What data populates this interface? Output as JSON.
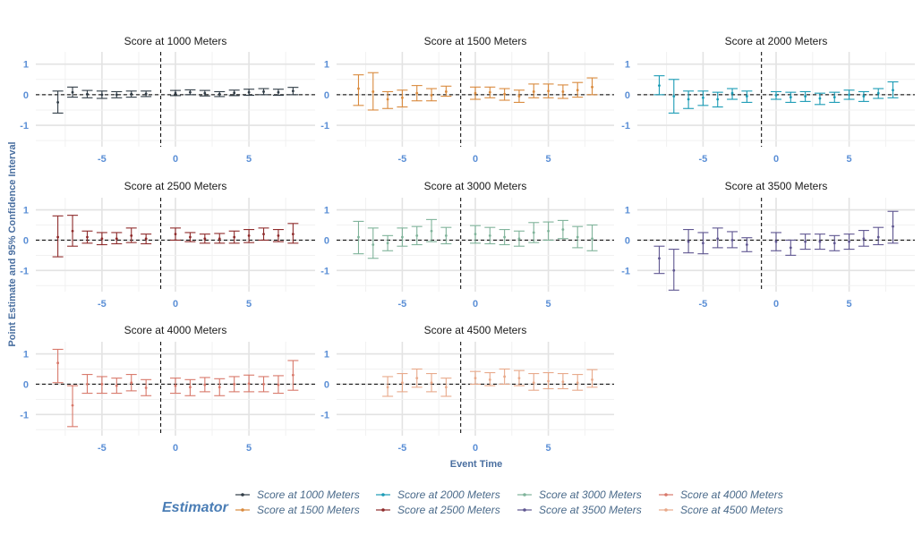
{
  "chart_data": {
    "type": "scatter",
    "subtype": "event-study point estimates with 95% confidence intervals, faceted",
    "xlabel": "Event Time",
    "ylabel": "Point Estimate and 95% Confidence Interval",
    "x_ticks": [
      -5,
      0,
      5
    ],
    "y_ticks": [
      -1,
      0,
      1
    ],
    "xlim": [
      -9.5,
      9.5
    ],
    "ylim": [
      -1.7,
      1.4
    ],
    "reference_lines": {
      "horizontal_y": 0,
      "vertical_x": -1,
      "style": "dashed"
    },
    "grid": true,
    "legend": {
      "title": "Estimator",
      "position": "bottom",
      "entries": [
        "Score at 1000 Meters",
        "Score at 1500 Meters",
        "Score at 2000 Meters",
        "Score at 2500 Meters",
        "Score at 3000 Meters",
        "Score at 3500 Meters",
        "Score at 4000 Meters",
        "Score at 4500 Meters"
      ]
    },
    "panels": [
      {
        "title": "Score at 1000 Meters",
        "color": "#2f3b45",
        "points": [
          {
            "x": -8,
            "y": -0.25,
            "lo": -0.6,
            "hi": 0.12
          },
          {
            "x": -7,
            "y": 0.08,
            "lo": -0.08,
            "hi": 0.25
          },
          {
            "x": -6,
            "y": 0.02,
            "lo": -0.1,
            "hi": 0.14
          },
          {
            "x": -5,
            "y": 0.0,
            "lo": -0.12,
            "hi": 0.12
          },
          {
            "x": -4,
            "y": 0.0,
            "lo": -0.1,
            "hi": 0.1
          },
          {
            "x": -3,
            "y": 0.02,
            "lo": -0.08,
            "hi": 0.12
          },
          {
            "x": -2,
            "y": 0.03,
            "lo": -0.06,
            "hi": 0.12
          },
          {
            "x": 0,
            "y": 0.05,
            "lo": -0.03,
            "hi": 0.14
          },
          {
            "x": 1,
            "y": 0.08,
            "lo": 0.0,
            "hi": 0.16
          },
          {
            "x": 2,
            "y": 0.05,
            "lo": -0.04,
            "hi": 0.14
          },
          {
            "x": 3,
            "y": 0.02,
            "lo": -0.06,
            "hi": 0.1
          },
          {
            "x": 4,
            "y": 0.06,
            "lo": -0.03,
            "hi": 0.15
          },
          {
            "x": 5,
            "y": 0.08,
            "lo": -0.02,
            "hi": 0.18
          },
          {
            "x": 6,
            "y": 0.1,
            "lo": 0.0,
            "hi": 0.2
          },
          {
            "x": 7,
            "y": 0.08,
            "lo": -0.02,
            "hi": 0.18
          },
          {
            "x": 8,
            "y": 0.12,
            "lo": 0.0,
            "hi": 0.24
          }
        ]
      },
      {
        "title": "Score at 1500 Meters",
        "color": "#d98a3d",
        "points": [
          {
            "x": -8,
            "y": 0.2,
            "lo": -0.35,
            "hi": 0.65
          },
          {
            "x": -7,
            "y": 0.1,
            "lo": -0.5,
            "hi": 0.72
          },
          {
            "x": -6,
            "y": -0.15,
            "lo": -0.45,
            "hi": 0.1
          },
          {
            "x": -5,
            "y": -0.1,
            "lo": -0.4,
            "hi": 0.15
          },
          {
            "x": -4,
            "y": 0.05,
            "lo": -0.2,
            "hi": 0.3
          },
          {
            "x": -3,
            "y": -0.02,
            "lo": -0.2,
            "hi": 0.2
          },
          {
            "x": -2,
            "y": 0.1,
            "lo": -0.05,
            "hi": 0.28
          },
          {
            "x": 0,
            "y": 0.05,
            "lo": -0.15,
            "hi": 0.25
          },
          {
            "x": 1,
            "y": 0.08,
            "lo": -0.1,
            "hi": 0.25
          },
          {
            "x": 2,
            "y": 0.02,
            "lo": -0.18,
            "hi": 0.2
          },
          {
            "x": 3,
            "y": -0.05,
            "lo": -0.25,
            "hi": 0.15
          },
          {
            "x": 4,
            "y": 0.1,
            "lo": -0.1,
            "hi": 0.35
          },
          {
            "x": 5,
            "y": 0.12,
            "lo": -0.1,
            "hi": 0.35
          },
          {
            "x": 6,
            "y": 0.1,
            "lo": -0.12,
            "hi": 0.32
          },
          {
            "x": 7,
            "y": 0.15,
            "lo": -0.08,
            "hi": 0.4
          },
          {
            "x": 8,
            "y": 0.25,
            "lo": 0.0,
            "hi": 0.55
          }
        ]
      },
      {
        "title": "Score at 2000 Meters",
        "color": "#1a9bb5",
        "points": [
          {
            "x": -8,
            "y": 0.3,
            "lo": 0.0,
            "hi": 0.62
          },
          {
            "x": -7,
            "y": -0.05,
            "lo": -0.6,
            "hi": 0.5
          },
          {
            "x": -6,
            "y": -0.15,
            "lo": -0.45,
            "hi": 0.12
          },
          {
            "x": -5,
            "y": -0.1,
            "lo": -0.35,
            "hi": 0.12
          },
          {
            "x": -4,
            "y": -0.15,
            "lo": -0.4,
            "hi": 0.08
          },
          {
            "x": -3,
            "y": 0.05,
            "lo": -0.15,
            "hi": 0.2
          },
          {
            "x": -2,
            "y": -0.05,
            "lo": -0.25,
            "hi": 0.12
          },
          {
            "x": 0,
            "y": -0.02,
            "lo": -0.15,
            "hi": 0.1
          },
          {
            "x": 1,
            "y": -0.08,
            "lo": -0.25,
            "hi": 0.08
          },
          {
            "x": 2,
            "y": -0.05,
            "lo": -0.22,
            "hi": 0.1
          },
          {
            "x": 3,
            "y": -0.12,
            "lo": -0.32,
            "hi": 0.05
          },
          {
            "x": 4,
            "y": -0.08,
            "lo": -0.25,
            "hi": 0.08
          },
          {
            "x": 5,
            "y": 0.0,
            "lo": -0.15,
            "hi": 0.15
          },
          {
            "x": 6,
            "y": -0.05,
            "lo": -0.22,
            "hi": 0.1
          },
          {
            "x": 7,
            "y": 0.05,
            "lo": -0.12,
            "hi": 0.2
          },
          {
            "x": 8,
            "y": 0.15,
            "lo": -0.1,
            "hi": 0.42
          }
        ]
      },
      {
        "title": "Score at 2500 Meters",
        "color": "#8e2a2a",
        "points": [
          {
            "x": -8,
            "y": 0.1,
            "lo": -0.55,
            "hi": 0.8
          },
          {
            "x": -7,
            "y": 0.3,
            "lo": -0.2,
            "hi": 0.82
          },
          {
            "x": -6,
            "y": 0.1,
            "lo": -0.1,
            "hi": 0.3
          },
          {
            "x": -5,
            "y": 0.05,
            "lo": -0.15,
            "hi": 0.25
          },
          {
            "x": -4,
            "y": 0.05,
            "lo": -0.12,
            "hi": 0.25
          },
          {
            "x": -3,
            "y": 0.15,
            "lo": -0.08,
            "hi": 0.4
          },
          {
            "x": -2,
            "y": 0.05,
            "lo": -0.12,
            "hi": 0.2
          },
          {
            "x": 0,
            "y": 0.2,
            "lo": 0.0,
            "hi": 0.4
          },
          {
            "x": 1,
            "y": 0.1,
            "lo": -0.05,
            "hi": 0.25
          },
          {
            "x": 2,
            "y": 0.05,
            "lo": -0.1,
            "hi": 0.2
          },
          {
            "x": 3,
            "y": 0.05,
            "lo": -0.1,
            "hi": 0.22
          },
          {
            "x": 4,
            "y": 0.1,
            "lo": -0.1,
            "hi": 0.3
          },
          {
            "x": 5,
            "y": 0.15,
            "lo": -0.08,
            "hi": 0.35
          },
          {
            "x": 6,
            "y": 0.2,
            "lo": 0.0,
            "hi": 0.4
          },
          {
            "x": 7,
            "y": 0.15,
            "lo": -0.05,
            "hi": 0.35
          },
          {
            "x": 8,
            "y": 0.2,
            "lo": -0.1,
            "hi": 0.55
          }
        ]
      },
      {
        "title": "Score at 3000 Meters",
        "color": "#7fb39a",
        "points": [
          {
            "x": -8,
            "y": 0.1,
            "lo": -0.45,
            "hi": 0.62
          },
          {
            "x": -7,
            "y": -0.15,
            "lo": -0.6,
            "hi": 0.4
          },
          {
            "x": -6,
            "y": -0.1,
            "lo": -0.35,
            "hi": 0.15
          },
          {
            "x": -5,
            "y": 0.1,
            "lo": -0.2,
            "hi": 0.4
          },
          {
            "x": -4,
            "y": 0.15,
            "lo": -0.15,
            "hi": 0.45
          },
          {
            "x": -3,
            "y": 0.3,
            "lo": -0.05,
            "hi": 0.68
          },
          {
            "x": -2,
            "y": 0.15,
            "lo": -0.12,
            "hi": 0.42
          },
          {
            "x": 0,
            "y": 0.2,
            "lo": -0.1,
            "hi": 0.48
          },
          {
            "x": 1,
            "y": 0.15,
            "lo": -0.12,
            "hi": 0.42
          },
          {
            "x": 2,
            "y": 0.1,
            "lo": -0.15,
            "hi": 0.35
          },
          {
            "x": 3,
            "y": 0.05,
            "lo": -0.2,
            "hi": 0.3
          },
          {
            "x": 4,
            "y": 0.25,
            "lo": -0.08,
            "hi": 0.58
          },
          {
            "x": 5,
            "y": 0.3,
            "lo": 0.0,
            "hi": 0.6
          },
          {
            "x": 6,
            "y": 0.35,
            "lo": 0.05,
            "hi": 0.65
          },
          {
            "x": 7,
            "y": 0.1,
            "lo": -0.25,
            "hi": 0.45
          },
          {
            "x": 8,
            "y": 0.05,
            "lo": -0.35,
            "hi": 0.5
          }
        ]
      },
      {
        "title": "Score at 3500 Meters",
        "color": "#5e5590",
        "points": [
          {
            "x": -8,
            "y": -0.6,
            "lo": -1.1,
            "hi": -0.2
          },
          {
            "x": -7,
            "y": -1.0,
            "lo": -1.65,
            "hi": -0.3
          },
          {
            "x": -6,
            "y": -0.05,
            "lo": -0.42,
            "hi": 0.35
          },
          {
            "x": -5,
            "y": -0.1,
            "lo": -0.45,
            "hi": 0.25
          },
          {
            "x": -4,
            "y": 0.05,
            "lo": -0.25,
            "hi": 0.4
          },
          {
            "x": -3,
            "y": 0.0,
            "lo": -0.25,
            "hi": 0.28
          },
          {
            "x": -2,
            "y": -0.15,
            "lo": -0.38,
            "hi": 0.08
          },
          {
            "x": 0,
            "y": -0.05,
            "lo": -0.35,
            "hi": 0.25
          },
          {
            "x": 1,
            "y": -0.25,
            "lo": -0.5,
            "hi": 0.0
          },
          {
            "x": 2,
            "y": -0.05,
            "lo": -0.3,
            "hi": 0.2
          },
          {
            "x": 3,
            "y": -0.05,
            "lo": -0.3,
            "hi": 0.2
          },
          {
            "x": 4,
            "y": -0.1,
            "lo": -0.35,
            "hi": 0.15
          },
          {
            "x": 5,
            "y": -0.05,
            "lo": -0.3,
            "hi": 0.2
          },
          {
            "x": 6,
            "y": 0.05,
            "lo": -0.2,
            "hi": 0.32
          },
          {
            "x": 7,
            "y": 0.1,
            "lo": -0.15,
            "hi": 0.42
          },
          {
            "x": 8,
            "y": 0.45,
            "lo": -0.1,
            "hi": 0.95
          }
        ]
      },
      {
        "title": "Score at 4000 Meters",
        "color": "#d8786a",
        "points": [
          {
            "x": -8,
            "y": 0.7,
            "lo": 0.05,
            "hi": 1.15
          },
          {
            "x": -7,
            "y": -0.7,
            "lo": -1.4,
            "hi": -0.05
          },
          {
            "x": -6,
            "y": 0.0,
            "lo": -0.3,
            "hi": 0.32
          },
          {
            "x": -5,
            "y": 0.0,
            "lo": -0.3,
            "hi": 0.25
          },
          {
            "x": -4,
            "y": -0.05,
            "lo": -0.3,
            "hi": 0.2
          },
          {
            "x": -3,
            "y": 0.05,
            "lo": -0.22,
            "hi": 0.32
          },
          {
            "x": -2,
            "y": -0.12,
            "lo": -0.38,
            "hi": 0.15
          },
          {
            "x": 0,
            "y": -0.05,
            "lo": -0.3,
            "hi": 0.2
          },
          {
            "x": 1,
            "y": -0.1,
            "lo": -0.38,
            "hi": 0.15
          },
          {
            "x": 2,
            "y": -0.02,
            "lo": -0.25,
            "hi": 0.22
          },
          {
            "x": 3,
            "y": -0.1,
            "lo": -0.38,
            "hi": 0.18
          },
          {
            "x": 4,
            "y": 0.0,
            "lo": -0.25,
            "hi": 0.25
          },
          {
            "x": 5,
            "y": 0.02,
            "lo": -0.25,
            "hi": 0.3
          },
          {
            "x": 6,
            "y": 0.0,
            "lo": -0.25,
            "hi": 0.25
          },
          {
            "x": 7,
            "y": -0.02,
            "lo": -0.3,
            "hi": 0.28
          },
          {
            "x": 8,
            "y": 0.3,
            "lo": -0.2,
            "hi": 0.78
          }
        ]
      },
      {
        "title": "Score at 4500 Meters",
        "color": "#e8a98a",
        "points": [
          {
            "x": -6,
            "y": -0.1,
            "lo": -0.4,
            "hi": 0.25
          },
          {
            "x": -5,
            "y": 0.05,
            "lo": -0.25,
            "hi": 0.35
          },
          {
            "x": -4,
            "y": 0.2,
            "lo": -0.1,
            "hi": 0.5
          },
          {
            "x": -3,
            "y": 0.05,
            "lo": -0.25,
            "hi": 0.35
          },
          {
            "x": -2,
            "y": -0.1,
            "lo": -0.4,
            "hi": 0.2
          },
          {
            "x": 0,
            "y": 0.2,
            "lo": 0.0,
            "hi": 0.42
          },
          {
            "x": 1,
            "y": 0.15,
            "lo": -0.05,
            "hi": 0.38
          },
          {
            "x": 2,
            "y": 0.25,
            "lo": 0.0,
            "hi": 0.5
          },
          {
            "x": 3,
            "y": 0.2,
            "lo": -0.05,
            "hi": 0.45
          },
          {
            "x": 4,
            "y": 0.05,
            "lo": -0.2,
            "hi": 0.35
          },
          {
            "x": 5,
            "y": 0.1,
            "lo": -0.15,
            "hi": 0.38
          },
          {
            "x": 6,
            "y": 0.08,
            "lo": -0.15,
            "hi": 0.35
          },
          {
            "x": 7,
            "y": 0.05,
            "lo": -0.2,
            "hi": 0.32
          },
          {
            "x": 8,
            "y": 0.15,
            "lo": -0.1,
            "hi": 0.48
          }
        ]
      }
    ]
  }
}
